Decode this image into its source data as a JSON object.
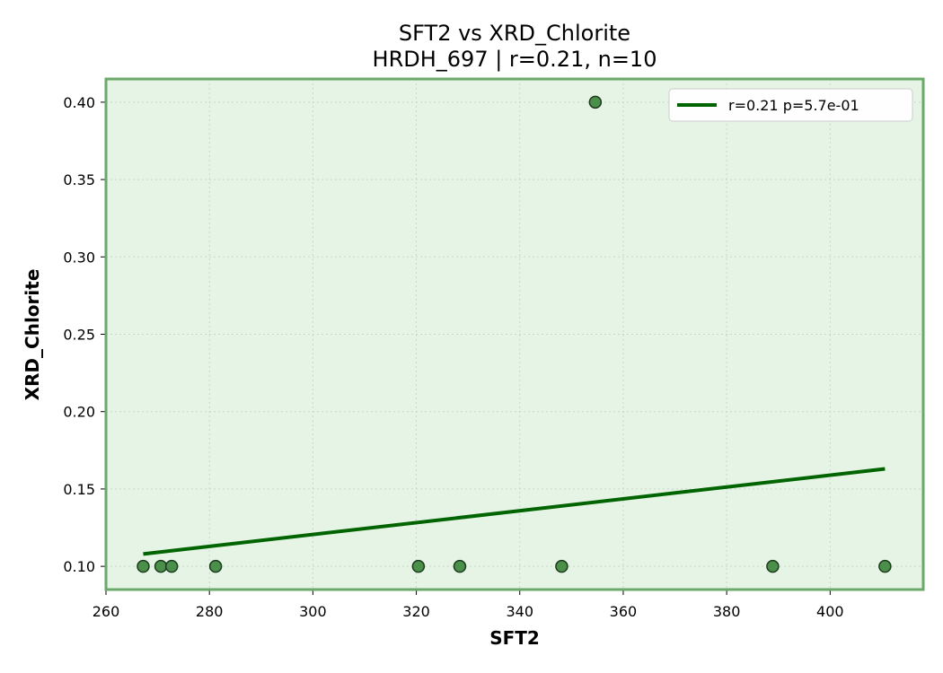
{
  "chart_data": {
    "type": "scatter",
    "title": "SFT2 vs XRD_Chlorite",
    "subtitle": "HRDH_697 | r=0.21, n=10",
    "xlabel": "SFT2",
    "ylabel": "XRD_Chlorite",
    "xlim": [
      260,
      418
    ],
    "ylim": [
      0.085,
      0.415
    ],
    "x_ticks": [
      260,
      280,
      300,
      320,
      340,
      360,
      380,
      400
    ],
    "y_ticks": [
      0.1,
      0.15,
      0.2,
      0.25,
      0.3,
      0.35,
      0.4
    ],
    "x_tick_labels": [
      "260",
      "280",
      "300",
      "320",
      "340",
      "360",
      "380",
      "400"
    ],
    "y_tick_labels": [
      "0.10",
      "0.15",
      "0.20",
      "0.25",
      "0.30",
      "0.35",
      "0.40"
    ],
    "grid": true,
    "legend_position": "top-right",
    "series": [
      {
        "name": "points",
        "x": [
          267.2,
          270.6,
          272.7,
          281.2,
          320.4,
          328.4,
          348.1,
          354.6,
          388.9,
          410.6
        ],
        "y": [
          0.1,
          0.1,
          0.1,
          0.1,
          0.1,
          0.1,
          0.1,
          0.4,
          0.1,
          0.1
        ]
      }
    ],
    "fit_line": {
      "label": "r=0.21  p=5.7e-01",
      "x": [
        267.2,
        410.6
      ],
      "y": [
        0.108,
        0.163
      ]
    },
    "colors": {
      "background": "#e6f4e6",
      "frame": "#6aa96a",
      "marker_fill": "#4a8f4a",
      "marker_edge": "#1e3a1e",
      "line": "#006400",
      "grid": "#c8d6c8"
    }
  }
}
